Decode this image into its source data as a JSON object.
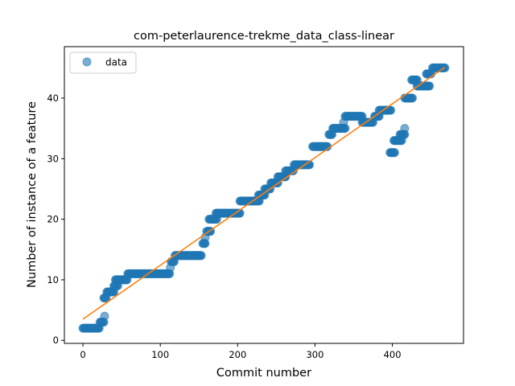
{
  "chart_data": {
    "type": "scatter",
    "title": "com-peterlaurence-trekme_data_class-linear",
    "xlabel": "Commit number",
    "ylabel": "Number of instance of a feature",
    "xlim": [
      -24,
      492
    ],
    "ylim": [
      -0.5,
      48.5
    ],
    "xticks": [
      0,
      100,
      200,
      300,
      400
    ],
    "yticks": [
      0,
      10,
      20,
      30,
      40
    ],
    "legend": {
      "placement": "upper-left",
      "entries": [
        "data"
      ]
    },
    "colors": {
      "scatter": "#1f77b4",
      "fit": "#ff7f0e"
    },
    "grid": false,
    "series": [
      {
        "name": "data",
        "kind": "scatter",
        "segments": [
          [
            0,
            21,
            2
          ],
          [
            22,
            27,
            3
          ],
          [
            28,
            28,
            4
          ],
          [
            27,
            30,
            7
          ],
          [
            31,
            40,
            8
          ],
          [
            40,
            45,
            9
          ],
          [
            42,
            57,
            10
          ],
          [
            58,
            112,
            11
          ],
          [
            113,
            113,
            12
          ],
          [
            114,
            118,
            13
          ],
          [
            119,
            153,
            14
          ],
          [
            155,
            158,
            16
          ],
          [
            158,
            158,
            17
          ],
          [
            160,
            165,
            18
          ],
          [
            163,
            173,
            20
          ],
          [
            172,
            203,
            21
          ],
          [
            203,
            228,
            23
          ],
          [
            227,
            235,
            24
          ],
          [
            235,
            242,
            25
          ],
          [
            243,
            252,
            26
          ],
          [
            252,
            262,
            27
          ],
          [
            262,
            272,
            28
          ],
          [
            273,
            293,
            29
          ],
          [
            297,
            316,
            32
          ],
          [
            318,
            322,
            34
          ],
          [
            323,
            339,
            35
          ],
          [
            337,
            337,
            36
          ],
          [
            339,
            361,
            37
          ],
          [
            361,
            375,
            36
          ],
          [
            377,
            383,
            37
          ],
          [
            383,
            398,
            38
          ],
          [
            397,
            403,
            31
          ],
          [
            402,
            412,
            33
          ],
          [
            410,
            416,
            34
          ],
          [
            416,
            416,
            35
          ],
          [
            416,
            426,
            40
          ],
          [
            425,
            432,
            43
          ],
          [
            432,
            448,
            42
          ],
          [
            444,
            450,
            44
          ],
          [
            452,
            468,
            45
          ]
        ]
      },
      {
        "name": "",
        "kind": "line",
        "x": [
          0,
          468
        ],
        "y": [
          3.5,
          45.1
        ]
      }
    ]
  }
}
